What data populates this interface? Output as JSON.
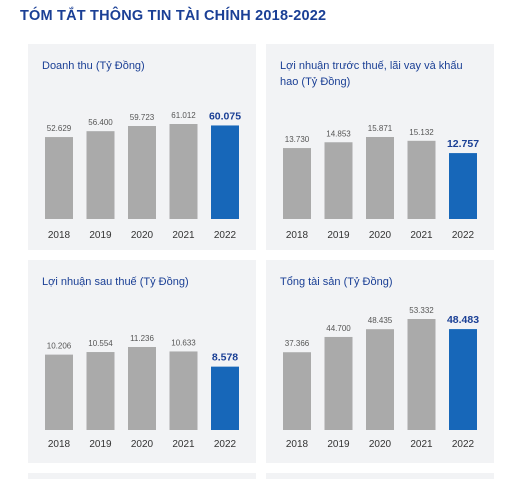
{
  "title": "TÓM TẮT THÔNG TIN TÀI CHÍNH 2018-2022",
  "colors": {
    "gray": "#aaaaaa",
    "highlight": "#1767b9",
    "title": "#1a3f95",
    "panel_bg": "#f2f3f5"
  },
  "chart_data": [
    {
      "type": "bar",
      "title": "Doanh thu (Tỷ Đồng)",
      "categories": [
        "2018",
        "2019",
        "2020",
        "2021",
        "2022"
      ],
      "values": [
        52629,
        56400,
        59723,
        61012,
        60075
      ],
      "labels": [
        "52.629",
        "56.400",
        "59.723",
        "61.012",
        "60.075"
      ],
      "highlight_index": 4
    },
    {
      "type": "bar",
      "title": "Lợi nhuận trước thuế, lãi vay và khấu hao (Tỷ Đồng)",
      "categories": [
        "2018",
        "2019",
        "2020",
        "2021",
        "2022"
      ],
      "values": [
        13730,
        14853,
        15871,
        15132,
        12757
      ],
      "labels": [
        "13.730",
        "14.853",
        "15.871",
        "15.132",
        "12.757"
      ],
      "highlight_index": 4
    },
    {
      "type": "bar",
      "title": "Lợi nhuận sau thuế (Tỷ Đồng)",
      "categories": [
        "2018",
        "2019",
        "2020",
        "2021",
        "2022"
      ],
      "values": [
        10206,
        10554,
        11236,
        10633,
        8578
      ],
      "labels": [
        "10.206",
        "10.554",
        "11.236",
        "10.633",
        "8.578"
      ],
      "highlight_index": 4
    },
    {
      "type": "bar",
      "title": "Tổng tài sản (Tỷ Đồng)",
      "categories": [
        "2018",
        "2019",
        "2020",
        "2021",
        "2022"
      ],
      "values": [
        37366,
        44700,
        48435,
        53332,
        48483
      ],
      "labels": [
        "37.366",
        "44.700",
        "48.435",
        "53.332",
        "48.483"
      ],
      "highlight_index": 4
    }
  ]
}
